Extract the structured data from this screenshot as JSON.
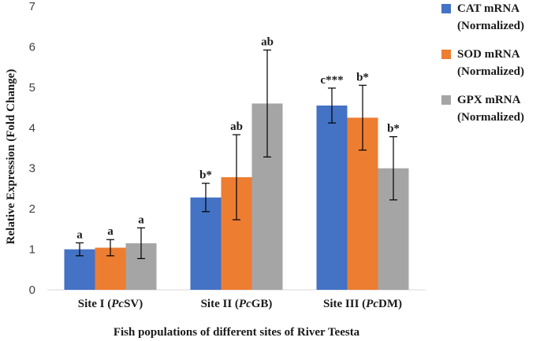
{
  "chart_data": {
    "type": "bar",
    "title": "",
    "xlabel": "Fish populations of different sites of River Teesta",
    "ylabel": "Relative Expression (Fold Change)",
    "ylim": [
      0,
      7
    ],
    "yticks": [
      "0",
      "1",
      "2",
      "3",
      "4",
      "5",
      "6",
      "7"
    ],
    "categories": [
      {
        "prefix": "Site I (",
        "italic": "Pc",
        "suffix": "SV)"
      },
      {
        "prefix": "Site II (",
        "italic": "Pc",
        "suffix": "GB)"
      },
      {
        "prefix": "Site III (",
        "italic": "Pc",
        "suffix": "DM)"
      }
    ],
    "series": [
      {
        "name": "CAT mRNA (Normalized)",
        "line1": "CAT mRNA",
        "line2": "(Normalized)",
        "color": "#4472C4",
        "values": [
          1.0,
          2.28,
          4.55
        ],
        "errors": [
          0.16,
          0.35,
          0.43
        ],
        "labels": [
          "a",
          "b*",
          "c***"
        ]
      },
      {
        "name": "SOD mRNA (Normalized)",
        "line1": "SOD mRNA",
        "line2": "(Normalized)",
        "color": "#ED7D31",
        "values": [
          1.04,
          2.78,
          4.25
        ],
        "errors": [
          0.2,
          1.05,
          0.8
        ],
        "labels": [
          "a",
          "ab",
          "b*"
        ]
      },
      {
        "name": "GPX mRNA (Normalized)",
        "line1": "GPX mRNA",
        "line2": "(Normalized)",
        "color": "#A5A5A5",
        "values": [
          1.15,
          4.6,
          3.0
        ],
        "errors": [
          0.38,
          1.32,
          0.78
        ],
        "labels": [
          "a",
          "ab",
          "b*"
        ]
      }
    ],
    "grid": false,
    "legend": "right"
  }
}
